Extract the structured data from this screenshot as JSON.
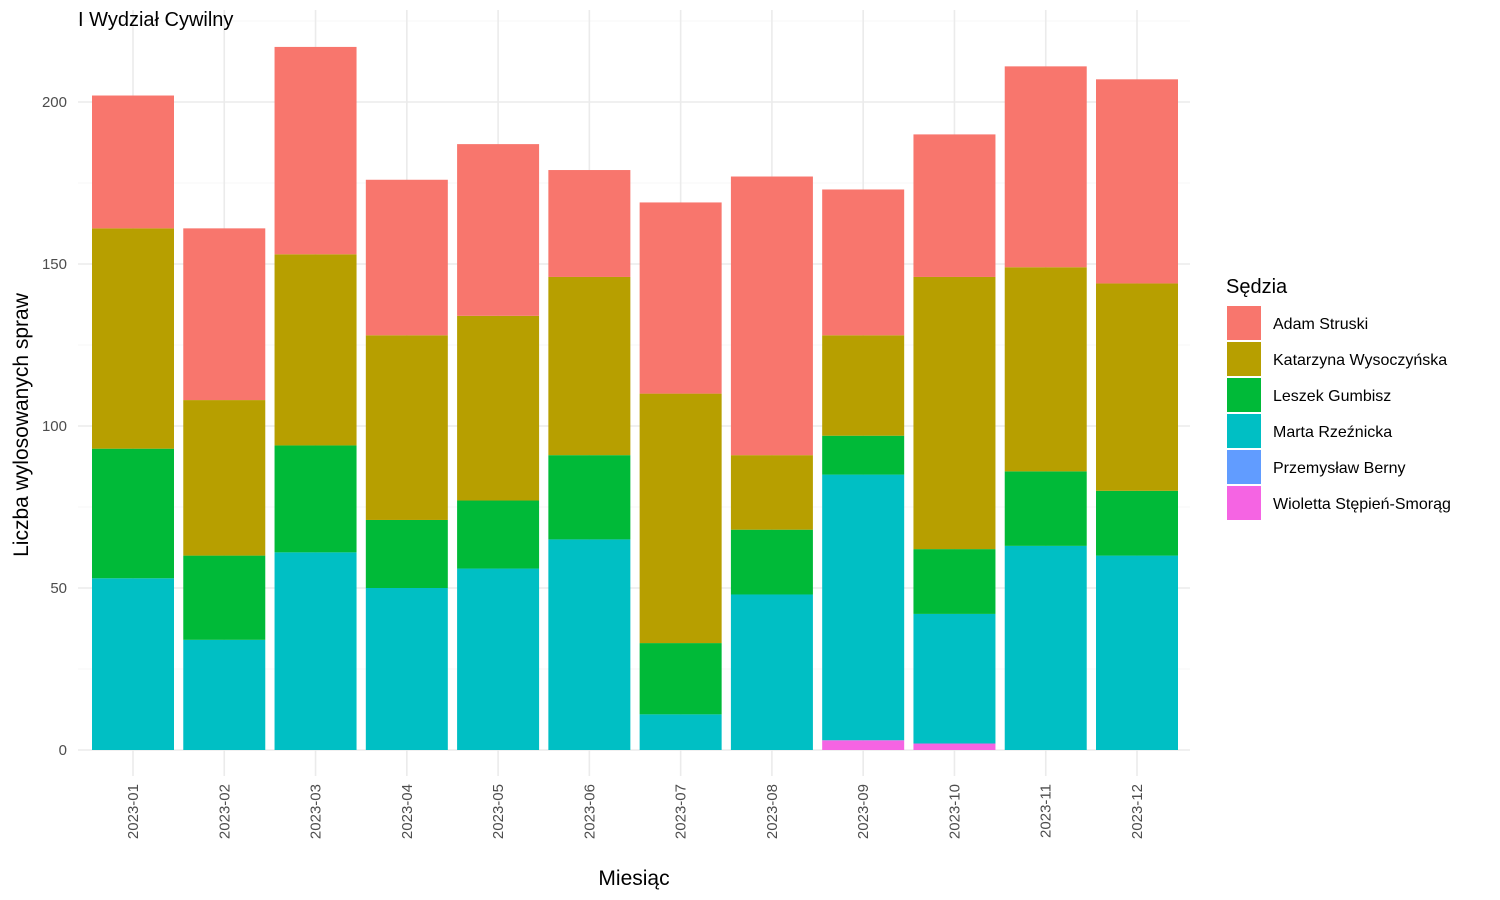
{
  "chart_data": {
    "type": "bar",
    "stacked": true,
    "title": "I Wydział Cywilny",
    "xlabel": "Miesiąc",
    "ylabel": "Liczba wylosowanych spraw",
    "ylim": [
      0,
      225
    ],
    "yticks": [
      0,
      50,
      100,
      150,
      200
    ],
    "grid": true,
    "legend_position": "right",
    "legend_title": "Sędzia",
    "categories": [
      "2023-01",
      "2023-02",
      "2023-03",
      "2023-04",
      "2023-05",
      "2023-06",
      "2023-07",
      "2023-08",
      "2023-09",
      "2023-10",
      "2023-11",
      "2023-12"
    ],
    "series": [
      {
        "name": "Adam Struski",
        "color": "#F8766D",
        "values": [
          41,
          53,
          64,
          48,
          53,
          33,
          59,
          86,
          45,
          44,
          62,
          63
        ]
      },
      {
        "name": "Katarzyna Wysoczyńska",
        "color": "#B79F00",
        "values": [
          68,
          48,
          59,
          57,
          57,
          55,
          77,
          23,
          31,
          84,
          63,
          64
        ]
      },
      {
        "name": "Leszek Gumbisz",
        "color": "#00BA38",
        "values": [
          40,
          26,
          33,
          21,
          21,
          26,
          22,
          20,
          12,
          20,
          23,
          20
        ]
      },
      {
        "name": "Marta Rzeźnicka",
        "color": "#00BFC4",
        "values": [
          53,
          34,
          61,
          50,
          56,
          65,
          11,
          48,
          82,
          40,
          63,
          60
        ]
      },
      {
        "name": "Przemysław Berny",
        "color": "#619CFF",
        "values": [
          0,
          0,
          0,
          0,
          0,
          0,
          0,
          0,
          0,
          0,
          0,
          0
        ]
      },
      {
        "name": "Wioletta Stępień-Smorąg",
        "color": "#F564E3",
        "values": [
          0,
          0,
          0,
          0,
          0,
          0,
          0,
          0,
          3,
          2,
          0,
          0
        ]
      }
    ]
  }
}
